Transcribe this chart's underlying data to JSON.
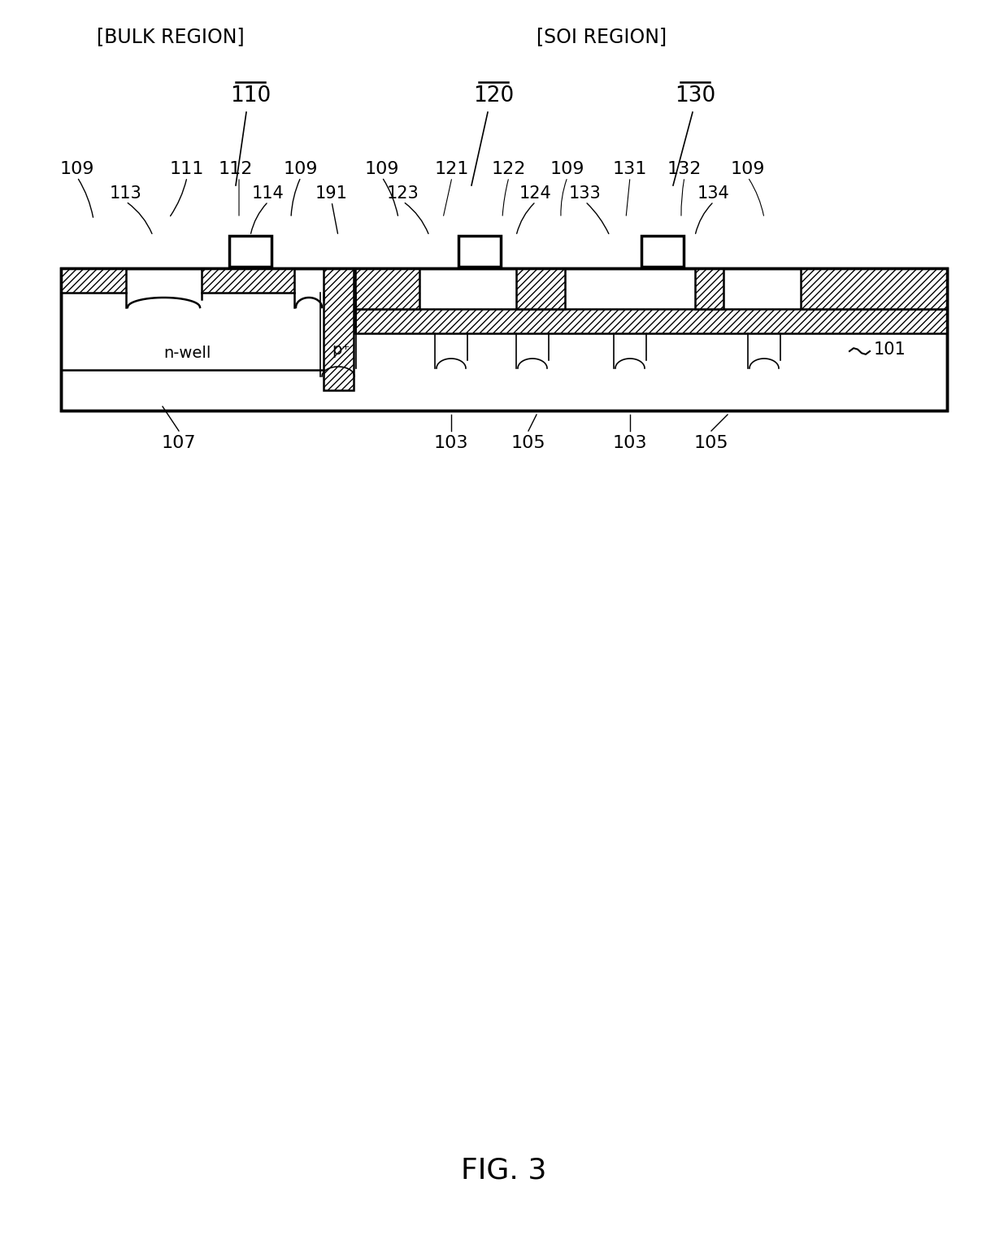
{
  "fig_width": 12.4,
  "fig_height": 15.35,
  "bg_color": "#ffffff",
  "line_color": "#000000",
  "figure_label": "FIG. 3",
  "bulk_region_label": "[BULK REGION]",
  "soi_region_label": "[SOI REGION]",
  "label_110": "110",
  "label_120": "120",
  "label_130": "130",
  "label_101": "101",
  "label_107": "107",
  "label_103a": "103",
  "label_105a": "105",
  "label_103b": "103",
  "label_105b": "105",
  "label_nwell": "n-well",
  "label_pplus": "p⁺",
  "terminal_labels_top": [
    "109",
    "111",
    "112",
    "109",
    "109",
    "121",
    "122",
    "109",
    "131",
    "132",
    "109"
  ],
  "terminal_labels_lower": [
    "113",
    "114",
    "191",
    "123",
    "124",
    "133",
    "134"
  ]
}
